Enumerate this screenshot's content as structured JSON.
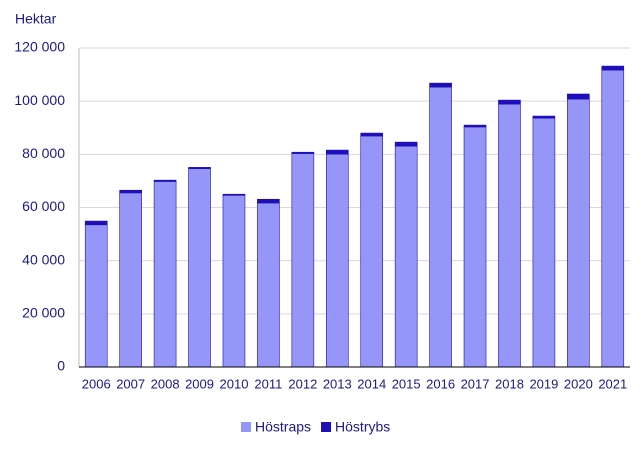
{
  "chart_data": {
    "type": "stacked-bar",
    "y_label": "Hektar",
    "categories": [
      "2006",
      "2007",
      "2008",
      "2009",
      "2010",
      "2011",
      "2012",
      "2013",
      "2014",
      "2015",
      "2016",
      "2017",
      "2018",
      "2019",
      "2020",
      "2021"
    ],
    "series": [
      {
        "name": "Höstraps",
        "color": "#9596f7",
        "values": [
          53500,
          65500,
          69800,
          74600,
          64600,
          61700,
          80300,
          80100,
          86900,
          83100,
          105300,
          90300,
          98900,
          93600,
          100800,
          111700
        ]
      },
      {
        "name": "Höstrybs",
        "color": "#1e0fb8",
        "values": [
          1400,
          1000,
          500,
          500,
          400,
          1400,
          500,
          1500,
          1100,
          1500,
          1500,
          700,
          1500,
          800,
          1900,
          1500
        ]
      }
    ],
    "ylim": [
      0,
      120000
    ],
    "yticks": [
      0,
      {
        "value": 20000,
        "label": "20 000"
      },
      {
        "value": 40000,
        "label": "40 000"
      },
      {
        "value": 60000,
        "label": "60 000"
      },
      {
        "value": 80000,
        "label": "80 000"
      },
      {
        "value": 100000,
        "label": "100 000"
      },
      {
        "value": 120000,
        "label": "120 000"
      }
    ],
    "grid": true,
    "legend": "bottom"
  }
}
